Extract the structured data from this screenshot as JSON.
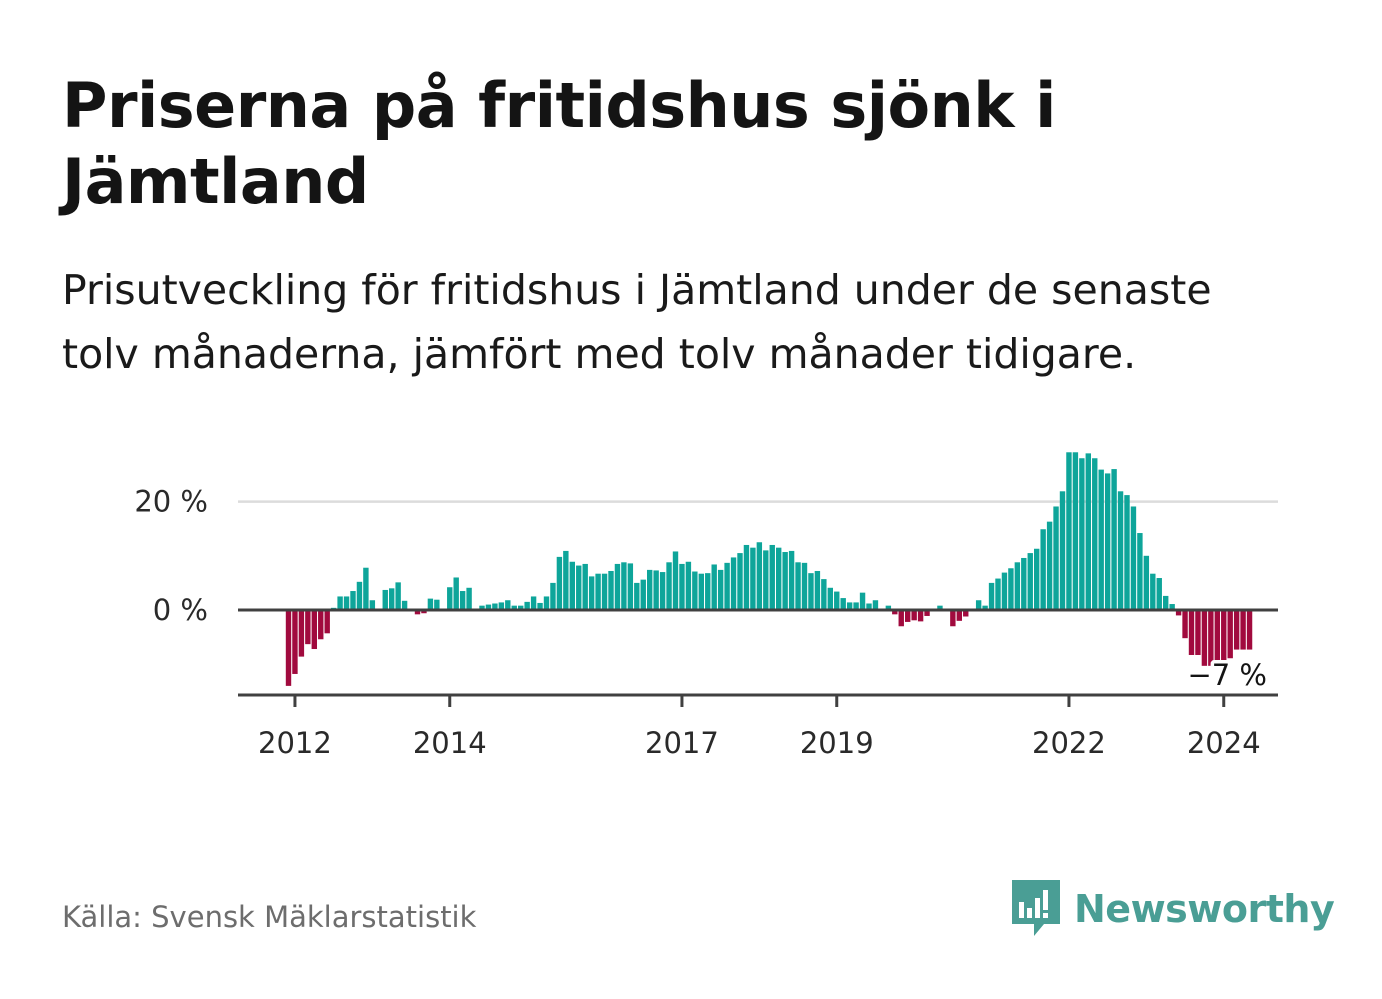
{
  "title": "Priserna på fritidshus sjönk i Jämtland",
  "subtitle": "Prisutveckling för fritidshus i Jämtland under de senaste tolv månaderna, jämfört med tolv månader tidigare.",
  "source": "Källa: Svensk Mäklarstatistik",
  "brand": "Newsworthy",
  "colors": {
    "positive": "#0ea59a",
    "negative": "#a10a3e",
    "brand": "#4a9e95",
    "grid": "#dcdcdc",
    "axis": "#404040"
  },
  "chart_data": {
    "type": "bar",
    "title": "Priserna på fritidshus sjönk i Jämtland",
    "x_start": "2011-12",
    "unit": "%",
    "ylim": [
      -16,
      30
    ],
    "yticks": [
      {
        "value": 0,
        "label": "0 %"
      },
      {
        "value": 20,
        "label": "20 %"
      }
    ],
    "xticks": [
      "2012",
      "2014",
      "2017",
      "2019",
      "2022",
      "2024"
    ],
    "last_label": "−7 %",
    "values": [
      -14.0,
      -11.8,
      -8.6,
      -6.3,
      -7.2,
      -5.4,
      -4.3,
      0.4,
      2.5,
      2.5,
      3.5,
      5.2,
      7.8,
      1.8,
      0,
      3.7,
      4.0,
      5.1,
      1.7,
      0,
      -0.8,
      -0.6,
      2.1,
      1.9,
      0,
      4.2,
      6.0,
      3.5,
      4.1,
      0,
      0.8,
      1.0,
      1.2,
      1.4,
      1.8,
      0.8,
      0.8,
      1.5,
      2.5,
      1.3,
      2.5,
      5.0,
      9.8,
      10.9,
      8.9,
      8.2,
      8.5,
      6.2,
      6.7,
      6.7,
      7.2,
      8.5,
      8.8,
      8.6,
      5.0,
      5.6,
      7.4,
      7.3,
      7.0,
      8.8,
      10.8,
      8.5,
      8.9,
      7.1,
      6.7,
      6.8,
      8.4,
      7.4,
      8.7,
      9.7,
      10.5,
      12.0,
      11.5,
      12.5,
      11.0,
      12.0,
      11.5,
      10.7,
      10.9,
      8.8,
      8.7,
      6.8,
      7.2,
      5.7,
      4.1,
      3.4,
      2.2,
      1.4,
      1.4,
      3.2,
      1.2,
      1.8,
      0,
      0.8,
      -0.8,
      -3.0,
      -2.2,
      -1.9,
      -2.1,
      -1.1,
      0,
      0.8,
      0,
      -3.0,
      -2.0,
      -1.2,
      0,
      1.8,
      0.8,
      5.0,
      5.8,
      6.9,
      7.7,
      8.8,
      9.6,
      10.5,
      11.3,
      14.9,
      16.3,
      19.1,
      21.9,
      29.1,
      29.1,
      28.0,
      28.9,
      28.0,
      25.9,
      25.2,
      26.0,
      21.9,
      21.2,
      19.1,
      14.2,
      10.0,
      6.7,
      5.9,
      2.6,
      1.1,
      -1.0,
      -5.2,
      -8.3,
      -8.3,
      -10.3,
      -10.3,
      -9.3,
      -9.3,
      -8.9,
      -7.3,
      -7.3,
      -7.3
    ]
  }
}
